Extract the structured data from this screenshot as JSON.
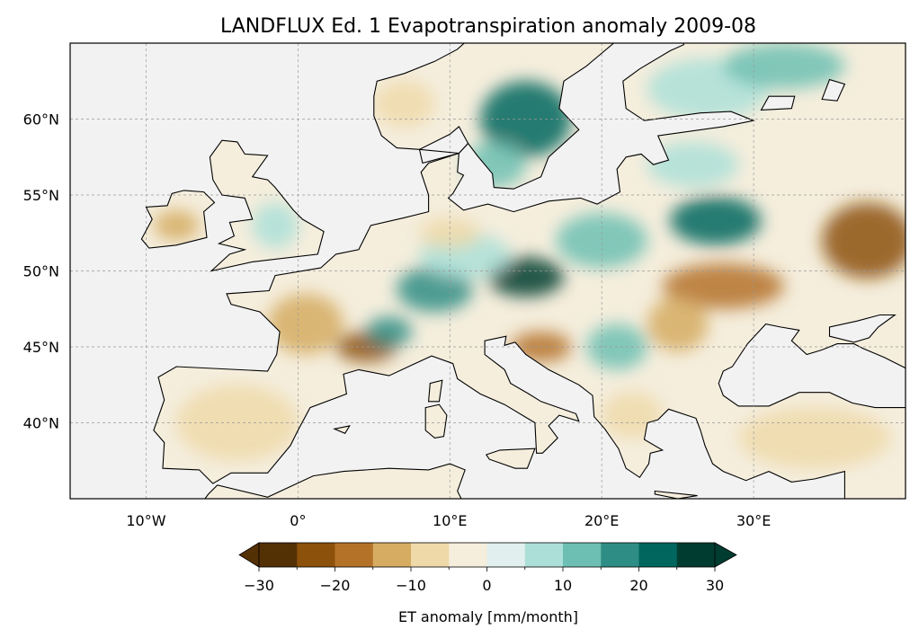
{
  "chart_data": {
    "type": "heatmap",
    "title": "LANDFLUX Ed. 1 Evapotranspiration anomaly 2009-08",
    "projection": "PlateCarree",
    "extent": {
      "lon": [
        -15,
        40
      ],
      "lat": [
        35,
        65
      ]
    },
    "grid": true,
    "xticks": [
      {
        "value": -10,
        "label": "10°W"
      },
      {
        "value": 0,
        "label": "0°"
      },
      {
        "value": 10,
        "label": "10°E"
      },
      {
        "value": 20,
        "label": "20°E"
      },
      {
        "value": 30,
        "label": "30°E"
      }
    ],
    "yticks": [
      {
        "value": 40,
        "label": "40°N"
      },
      {
        "value": 45,
        "label": "45°N"
      },
      {
        "value": 50,
        "label": "50°N"
      },
      {
        "value": 55,
        "label": "55°N"
      },
      {
        "value": 60,
        "label": "60°N"
      }
    ],
    "colorbar": {
      "label": "ET anomaly [mm/month]",
      "levels": [
        -30,
        -25,
        -20,
        -15,
        -10,
        -5,
        0,
        5,
        10,
        15,
        20,
        25,
        30
      ],
      "colors": [
        "#543005",
        "#8c510a",
        "#b47228",
        "#d5ac62",
        "#efd9a9",
        "#f5eedd",
        "#e1f0ee",
        "#acdfd7",
        "#6dbfb3",
        "#2e8d85",
        "#01665e",
        "#003c30"
      ],
      "extend": "both",
      "ticks": [
        {
          "value": -30,
          "label": "−30"
        },
        {
          "value": -20,
          "label": "−20"
        },
        {
          "value": -10,
          "label": "−10"
        },
        {
          "value": 0,
          "label": "0"
        },
        {
          "value": 10,
          "label": "10"
        },
        {
          "value": 20,
          "label": "20"
        },
        {
          "value": 30,
          "label": "30"
        }
      ]
    },
    "ocean_color": "#f2f2f2",
    "anomaly_field_approx": [
      {
        "lon": 15,
        "lat": 60,
        "rlon": 3,
        "rlat": 2.5,
        "value": 22
      },
      {
        "lon": 13,
        "lat": 57,
        "rlon": 2,
        "rlat": 1.5,
        "value": 12
      },
      {
        "lon": 15,
        "lat": 49.6,
        "rlon": 2.5,
        "rlat": 1.3,
        "value": 27
      },
      {
        "lon": 9,
        "lat": 48.8,
        "rlon": 2.5,
        "rlat": 1.5,
        "value": 17
      },
      {
        "lon": 11,
        "lat": 51,
        "rlon": 3,
        "rlat": 1.5,
        "value": 8
      },
      {
        "lon": 27.5,
        "lat": 53.3,
        "rlon": 3,
        "rlat": 1.6,
        "value": 20
      },
      {
        "lon": 20,
        "lat": 52,
        "rlon": 3,
        "rlat": 1.8,
        "value": 10
      },
      {
        "lon": 37.5,
        "lat": 52,
        "rlon": 3,
        "rlat": 2.5,
        "value": -25
      },
      {
        "lon": 28,
        "lat": 49,
        "rlon": 4,
        "rlat": 1.5,
        "value": -18
      },
      {
        "lon": 25,
        "lat": 46.5,
        "rlon": 2,
        "rlat": 1.8,
        "value": -15
      },
      {
        "lon": 0.5,
        "lat": 46.5,
        "rlon": 2.5,
        "rlat": 2,
        "value": -15
      },
      {
        "lon": 4.5,
        "lat": 45,
        "rlon": 2,
        "rlat": 1,
        "value": -25
      },
      {
        "lon": 6,
        "lat": 46,
        "rlon": 1.5,
        "rlat": 1,
        "value": 18
      },
      {
        "lon": -4,
        "lat": 40,
        "rlon": 4,
        "rlat": 2.5,
        "value": -8
      },
      {
        "lon": -8,
        "lat": 53,
        "rlon": 1.5,
        "rlat": 1,
        "value": -12
      },
      {
        "lon": 27,
        "lat": 62,
        "rlon": 4,
        "rlat": 2,
        "value": 8
      },
      {
        "lon": 32,
        "lat": 63.5,
        "rlon": 4,
        "rlat": 1.5,
        "value": 12
      },
      {
        "lon": 21,
        "lat": 45,
        "rlon": 2,
        "rlat": 1.5,
        "value": 10
      },
      {
        "lon": 22,
        "lat": 40.5,
        "rlon": 2,
        "rlat": 1.5,
        "value": -10
      },
      {
        "lon": 34,
        "lat": 39,
        "rlon": 5,
        "rlat": 2,
        "value": -8
      },
      {
        "lon": 16,
        "lat": 45,
        "rlon": 2,
        "rlat": 1,
        "value": -20
      },
      {
        "lon": 10,
        "lat": 52.5,
        "rlon": 2,
        "rlat": 1,
        "value": -10
      },
      {
        "lon": 7,
        "lat": 61,
        "rlon": 2,
        "rlat": 1.5,
        "value": -8
      },
      {
        "lon": 26,
        "lat": 57,
        "rlon": 3,
        "rlat": 1.5,
        "value": 8
      },
      {
        "lon": -1.5,
        "lat": 53,
        "rlon": 1.5,
        "rlat": 1.5,
        "value": 6
      }
    ]
  }
}
